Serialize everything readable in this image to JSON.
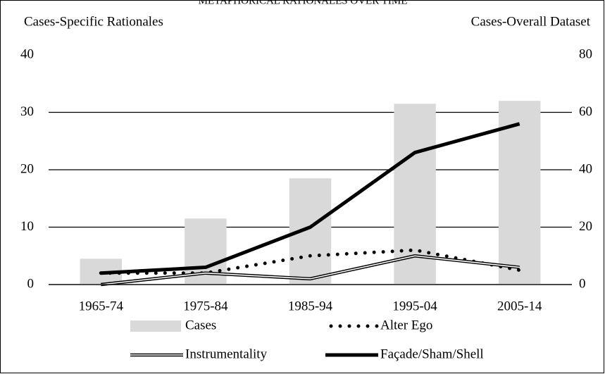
{
  "chart_data": {
    "type": "bar-line",
    "title": "METAPHORICAL  RATIONALES OVER TIME",
    "y_label": "Cases-Specific Rationales",
    "y2_label": "Cases-Overall Dataset",
    "categories": [
      "1965-74",
      "1975-84",
      "1985-94",
      "1995-04",
      "2005-14"
    ],
    "series": [
      {
        "name": "Cases",
        "type": "bar",
        "axis": "y2",
        "color": "#d9d9d9",
        "values": [
          9,
          23,
          37,
          63,
          64
        ]
      },
      {
        "name": "Alter Ego",
        "type": "line",
        "line_style": "dotted",
        "color": "#000000",
        "values": [
          2,
          2,
          5,
          6,
          2.5
        ]
      },
      {
        "name": "Instrumentality",
        "type": "line",
        "line_style": "double",
        "color": "#000000",
        "values": [
          0,
          2,
          1,
          5,
          3
        ]
      },
      {
        "name": "Façade/Sham/Shell",
        "type": "line",
        "line_style": "solid",
        "color": "#000000",
        "values": [
          2,
          3,
          10,
          23,
          28
        ]
      }
    ],
    "ylim": [
      0,
      40
    ],
    "yticks": [
      0,
      10,
      20,
      30,
      40
    ],
    "y2lim": [
      0,
      80
    ],
    "y2ticks": [
      0,
      20,
      40,
      60,
      80
    ],
    "grid": true,
    "legend": "bottom"
  }
}
